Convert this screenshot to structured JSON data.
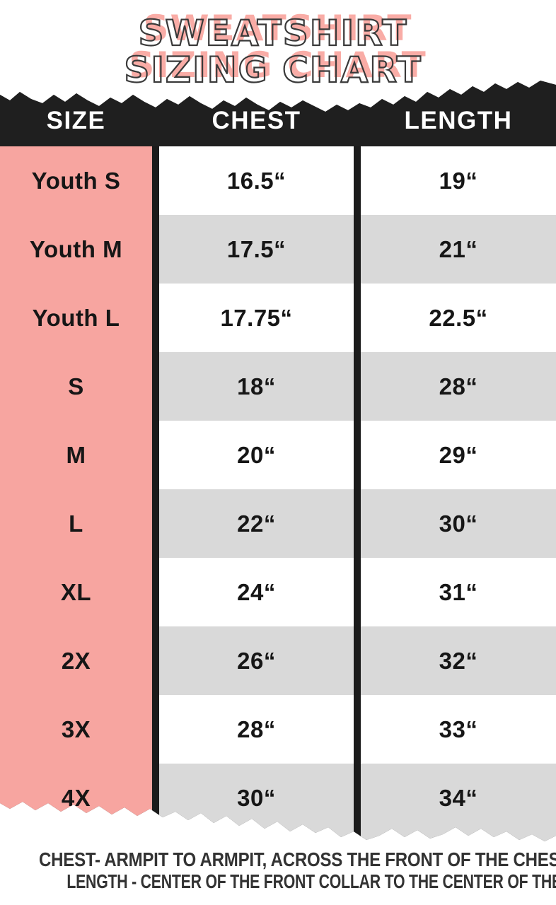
{
  "title": {
    "line1": "SWEATSHIRT",
    "line2": "SIZING CHART"
  },
  "chart_data": {
    "type": "table",
    "title": "SWEATSHIRT SIZING CHART",
    "columns": [
      "SIZE",
      "CHEST",
      "LENGTH"
    ],
    "rows": [
      [
        "Youth S",
        "16.5“",
        "19“"
      ],
      [
        "Youth M",
        "17.5“",
        "21“"
      ],
      [
        "Youth L",
        "17.75“",
        "22.5“"
      ],
      [
        "S",
        "18“",
        "28“"
      ],
      [
        "M",
        "20“",
        "29“"
      ],
      [
        "L",
        "22“",
        "30“"
      ],
      [
        "XL",
        "24“",
        "31“"
      ],
      [
        "2X",
        "26“",
        "32“"
      ],
      [
        "3X",
        "28“",
        "33“"
      ],
      [
        "4X",
        "30“",
        "34“"
      ]
    ],
    "units": "inches",
    "layout_hints": {
      "size_column_highlight": "pink",
      "row_striping": "alternating white / gray",
      "header_style": "torn black paper bar",
      "bottom_edge": "torn paper"
    }
  },
  "footer": {
    "line1": "CHEST- ARMPIT TO ARMPIT, ACROSS THE FRONT OF THE CHEST",
    "line2": "LENGTH - CENTER OF THE FRONT COLLAR TO THE CENTER OF THE TAIL"
  },
  "colors": {
    "title_pink": "#F9ACA6",
    "title_outline": "#3A3A3A",
    "header_background": "#1F1F1F",
    "header_text": "#FFFFFF",
    "size_column_pink": "#F7A5A0",
    "stripe_gray": "#D9D9D9",
    "row_white": "#FFFFFF",
    "cell_text": "#161616",
    "footer_text": "#333333"
  }
}
